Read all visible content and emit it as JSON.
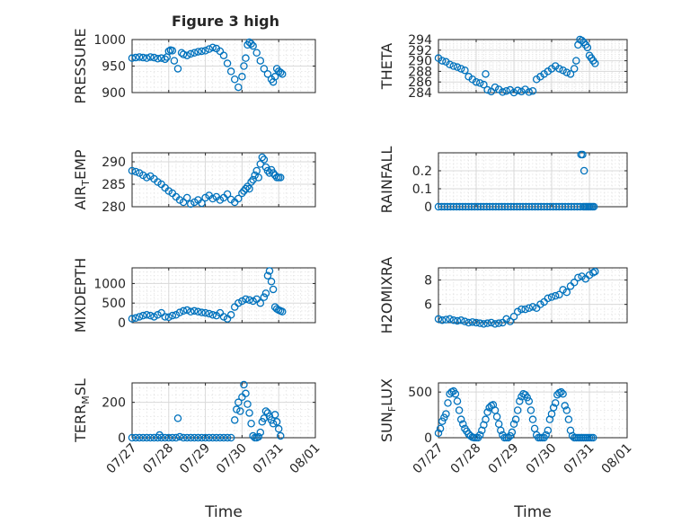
{
  "figure": {
    "title": "Figure 3 high"
  },
  "chart_data": [
    {
      "id": "pressure",
      "type": "scatter",
      "title": "Figure 3 high",
      "ylabel": "PRESSURE",
      "xlabel": "",
      "ylim": [
        900,
        1000
      ],
      "yticks": [
        900,
        950,
        1000
      ],
      "ytick_labels": [
        "900",
        "950",
        "1000"
      ],
      "xlim": [
        0,
        5
      ],
      "xticks": [
        0,
        1,
        2,
        3,
        4,
        5
      ],
      "xtick_labels": [],
      "grid": true,
      "marker_color": "#0072bd",
      "x": [
        0.0,
        0.1,
        0.2,
        0.3,
        0.4,
        0.5,
        0.6,
        0.7,
        0.8,
        0.9,
        0.95,
        1.0,
        1.05,
        1.1,
        1.15,
        1.25,
        1.35,
        1.4,
        1.5,
        1.6,
        1.7,
        1.8,
        1.9,
        2.0,
        2.1,
        2.2,
        2.3,
        2.4,
        2.5,
        2.6,
        2.7,
        2.8,
        2.9,
        3.0,
        3.05,
        3.1,
        3.15,
        3.2,
        3.25,
        3.3,
        3.4,
        3.5,
        3.6,
        3.7,
        3.8,
        3.85,
        3.9,
        3.95,
        4.0,
        4.05,
        4.1
      ],
      "y": [
        965,
        966,
        967,
        966,
        965,
        967,
        966,
        964,
        965,
        963,
        967,
        978,
        980,
        979,
        960,
        945,
        975,
        972,
        970,
        973,
        975,
        977,
        978,
        979,
        982,
        985,
        983,
        978,
        970,
        955,
        940,
        925,
        910,
        930,
        950,
        965,
        990,
        995,
        992,
        988,
        975,
        960,
        945,
        935,
        925,
        920,
        930,
        945,
        940,
        938,
        935
      ]
    },
    {
      "id": "theta",
      "type": "scatter",
      "title": "",
      "ylabel": "THETA",
      "xlabel": "",
      "ylim": [
        284,
        294
      ],
      "yticks": [
        284,
        286,
        288,
        290,
        292,
        294
      ],
      "ytick_labels": [
        "284",
        "286",
        "288",
        "290",
        "292",
        "294"
      ],
      "xlim": [
        0,
        5
      ],
      "xticks": [
        0,
        1,
        2,
        3,
        4,
        5
      ],
      "xtick_labels": [],
      "grid": true,
      "marker_color": "#0072bd",
      "x": [
        0.0,
        0.1,
        0.2,
        0.3,
        0.4,
        0.5,
        0.6,
        0.7,
        0.8,
        0.9,
        1.0,
        1.1,
        1.2,
        1.25,
        1.3,
        1.4,
        1.5,
        1.6,
        1.7,
        1.8,
        1.9,
        2.0,
        2.1,
        2.2,
        2.3,
        2.4,
        2.5,
        2.6,
        2.7,
        2.8,
        2.9,
        3.0,
        3.1,
        3.2,
        3.3,
        3.4,
        3.5,
        3.6,
        3.65,
        3.7,
        3.75,
        3.8,
        3.85,
        3.9,
        3.95,
        4.0,
        4.05,
        4.1,
        4.15
      ],
      "y": [
        290.5,
        290.0,
        289.8,
        289.3,
        289.0,
        288.8,
        288.5,
        288.2,
        287.0,
        286.5,
        286.0,
        285.8,
        285.5,
        287.5,
        284.5,
        284.2,
        285.0,
        284.6,
        284.1,
        284.3,
        284.5,
        284.0,
        284.4,
        284.2,
        284.6,
        284.1,
        284.3,
        286.5,
        287.0,
        287.5,
        288.0,
        288.5,
        289.0,
        288.5,
        288.2,
        287.8,
        287.5,
        288.5,
        290.0,
        293.0,
        294.0,
        293.8,
        293.5,
        293.0,
        292.5,
        291.0,
        290.5,
        290.0,
        289.5
      ]
    },
    {
      "id": "air_temp",
      "type": "scatter",
      "title": "",
      "ylabel": "AIR_TEMP",
      "ylabel_display": {
        "base": "AIR",
        "sub": "T",
        "rest": "EMP"
      },
      "xlabel": "",
      "ylim": [
        280,
        292
      ],
      "yticks": [
        280,
        285,
        290
      ],
      "ytick_labels": [
        "280",
        "285",
        "290"
      ],
      "xlim": [
        0,
        5
      ],
      "xticks": [
        0,
        1,
        2,
        3,
        4,
        5
      ],
      "xtick_labels": [],
      "grid": true,
      "marker_color": "#0072bd",
      "x": [
        0.0,
        0.1,
        0.2,
        0.3,
        0.4,
        0.5,
        0.6,
        0.7,
        0.8,
        0.9,
        1.0,
        1.1,
        1.2,
        1.3,
        1.4,
        1.5,
        1.6,
        1.7,
        1.8,
        1.9,
        2.0,
        2.1,
        2.2,
        2.3,
        2.4,
        2.5,
        2.6,
        2.7,
        2.8,
        2.9,
        3.0,
        3.05,
        3.1,
        3.15,
        3.2,
        3.25,
        3.3,
        3.35,
        3.4,
        3.45,
        3.5,
        3.55,
        3.6,
        3.65,
        3.7,
        3.75,
        3.8,
        3.85,
        3.9,
        3.95,
        4.0,
        4.05
      ],
      "y": [
        288.0,
        287.8,
        287.5,
        287.0,
        286.5,
        286.8,
        286.2,
        285.5,
        285.0,
        284.2,
        283.5,
        283.0,
        282.2,
        281.5,
        281.0,
        282.0,
        280.6,
        281.0,
        281.5,
        280.8,
        282.0,
        282.5,
        281.8,
        282.2,
        281.5,
        282.0,
        282.8,
        281.6,
        281.0,
        281.8,
        283.0,
        283.5,
        284.0,
        284.5,
        284.0,
        285.5,
        286.0,
        287.0,
        288.0,
        286.5,
        289.5,
        291.0,
        290.5,
        288.8,
        288.0,
        287.5,
        288.2,
        287.5,
        287.0,
        286.5,
        286.5,
        286.5
      ]
    },
    {
      "id": "rainfall",
      "type": "scatter",
      "title": "",
      "ylabel": "RAINFALL",
      "xlabel": "",
      "ylim": [
        0,
        0.3
      ],
      "yticks": [
        0,
        0.1,
        0.2
      ],
      "ytick_labels": [
        "0",
        "0.1",
        "0.2"
      ],
      "xlim": [
        0,
        5
      ],
      "xticks": [
        0,
        1,
        2,
        3,
        4,
        5
      ],
      "xtick_labels": [],
      "grid": true,
      "marker_color": "#0072bd",
      "x": [
        0.0,
        0.08,
        0.16,
        0.24,
        0.32,
        0.4,
        0.48,
        0.56,
        0.64,
        0.72,
        0.8,
        0.88,
        0.96,
        1.04,
        1.12,
        1.2,
        1.28,
        1.36,
        1.44,
        1.52,
        1.6,
        1.68,
        1.76,
        1.84,
        1.92,
        2.0,
        2.08,
        2.16,
        2.24,
        2.32,
        2.4,
        2.48,
        2.56,
        2.64,
        2.72,
        2.8,
        2.88,
        2.96,
        3.04,
        3.12,
        3.2,
        3.28,
        3.36,
        3.44,
        3.52,
        3.6,
        3.68,
        3.76,
        3.84,
        3.88,
        3.92,
        3.96,
        4.0,
        4.04,
        4.08,
        4.12,
        3.78,
        3.82,
        3.86
      ],
      "y": [
        0,
        0,
        0,
        0,
        0,
        0,
        0,
        0,
        0,
        0,
        0,
        0,
        0,
        0,
        0,
        0,
        0,
        0,
        0,
        0,
        0,
        0,
        0,
        0,
        0,
        0,
        0,
        0,
        0,
        0,
        0,
        0,
        0,
        0,
        0,
        0,
        0,
        0,
        0,
        0,
        0,
        0,
        0,
        0,
        0,
        0,
        0,
        0,
        0,
        0,
        0,
        0,
        0,
        0,
        0,
        0,
        0.29,
        0.29,
        0.2
      ]
    },
    {
      "id": "mixdepth",
      "type": "scatter",
      "title": "",
      "ylabel": "MIXDEPTH",
      "xlabel": "",
      "ylim": [
        0,
        1400
      ],
      "yticks": [
        0,
        500,
        1000
      ],
      "ytick_labels": [
        "0",
        "500",
        "1000"
      ],
      "xlim": [
        0,
        5
      ],
      "xticks": [
        0,
        1,
        2,
        3,
        4,
        5
      ],
      "xtick_labels": [],
      "grid": true,
      "marker_color": "#0072bd",
      "x": [
        0.0,
        0.1,
        0.2,
        0.3,
        0.4,
        0.5,
        0.6,
        0.7,
        0.8,
        0.9,
        1.0,
        1.1,
        1.2,
        1.3,
        1.4,
        1.5,
        1.6,
        1.7,
        1.8,
        1.9,
        2.0,
        2.1,
        2.2,
        2.3,
        2.4,
        2.5,
        2.6,
        2.7,
        2.8,
        2.9,
        3.0,
        3.1,
        3.2,
        3.3,
        3.4,
        3.5,
        3.6,
        3.65,
        3.7,
        3.75,
        3.8,
        3.85,
        3.9,
        3.95,
        4.0,
        4.05,
        4.1
      ],
      "y": [
        100,
        120,
        150,
        180,
        200,
        180,
        150,
        200,
        250,
        150,
        140,
        180,
        200,
        260,
        300,
        320,
        280,
        300,
        280,
        260,
        250,
        230,
        200,
        180,
        250,
        150,
        100,
        200,
        400,
        500,
        550,
        600,
        580,
        550,
        600,
        500,
        650,
        750,
        1200,
        1320,
        1050,
        850,
        400,
        350,
        320,
        300,
        280
      ]
    },
    {
      "id": "h2omixra",
      "type": "scatter",
      "title": "",
      "ylabel": "H2OMIXRA",
      "xlabel": "",
      "ylim": [
        4.5,
        9
      ],
      "yticks": [
        6,
        8
      ],
      "ytick_labels": [
        "6",
        "8"
      ],
      "xlim": [
        0,
        5
      ],
      "xticks": [
        0,
        1,
        2,
        3,
        4,
        5
      ],
      "xtick_labels": [],
      "grid": true,
      "marker_color": "#0072bd",
      "x": [
        0.0,
        0.1,
        0.2,
        0.3,
        0.4,
        0.5,
        0.6,
        0.7,
        0.8,
        0.9,
        1.0,
        1.1,
        1.2,
        1.3,
        1.4,
        1.5,
        1.6,
        1.7,
        1.8,
        1.9,
        2.0,
        2.1,
        2.2,
        2.3,
        2.4,
        2.5,
        2.6,
        2.7,
        2.8,
        2.9,
        3.0,
        3.1,
        3.2,
        3.3,
        3.4,
        3.5,
        3.6,
        3.7,
        3.8,
        3.9,
        4.0,
        4.1,
        4.15
      ],
      "y": [
        4.8,
        4.7,
        4.75,
        4.8,
        4.7,
        4.65,
        4.7,
        4.6,
        4.5,
        4.55,
        4.5,
        4.45,
        4.4,
        4.45,
        4.5,
        4.4,
        4.45,
        4.5,
        4.8,
        4.6,
        5.0,
        5.4,
        5.6,
        5.6,
        5.7,
        5.8,
        5.7,
        6.0,
        6.2,
        6.5,
        6.6,
        6.7,
        6.8,
        7.2,
        7.0,
        7.5,
        7.8,
        8.2,
        8.3,
        8.1,
        8.4,
        8.6,
        8.7
      ]
    },
    {
      "id": "terr_msl",
      "type": "scatter",
      "title": "",
      "ylabel": "TERR_MSL",
      "ylabel_display": {
        "base": "TERR",
        "sub": "M",
        "rest": "SL"
      },
      "xlabel": "Time",
      "ylim": [
        0,
        310
      ],
      "yticks": [
        0,
        200
      ],
      "ytick_labels": [
        "0",
        "200"
      ],
      "xlim": [
        0,
        5
      ],
      "xticks": [
        0,
        1,
        2,
        3,
        4,
        5
      ],
      "xtick_labels": [
        "07/27",
        "07/28",
        "07/29",
        "07/30",
        "07/31",
        "08/01"
      ],
      "grid": true,
      "marker_color": "#0072bd",
      "x": [
        0.0,
        0.1,
        0.2,
        0.3,
        0.4,
        0.5,
        0.6,
        0.7,
        0.75,
        0.8,
        0.9,
        1.0,
        1.1,
        1.2,
        1.25,
        1.3,
        1.4,
        1.5,
        1.6,
        1.7,
        1.8,
        1.9,
        2.0,
        2.1,
        2.2,
        2.3,
        2.4,
        2.5,
        2.6,
        2.7,
        2.8,
        2.85,
        2.9,
        2.95,
        3.0,
        3.05,
        3.1,
        3.15,
        3.2,
        3.25,
        3.3,
        3.35,
        3.4,
        3.45,
        3.5,
        3.55,
        3.6,
        3.65,
        3.7,
        3.75,
        3.8,
        3.85,
        3.9,
        3.95,
        4.0,
        4.05
      ],
      "y": [
        0,
        0,
        0,
        0,
        0,
        0,
        0,
        0,
        15,
        0,
        0,
        0,
        0,
        0,
        110,
        5,
        0,
        0,
        0,
        0,
        0,
        0,
        0,
        0,
        0,
        0,
        0,
        0,
        0,
        0,
        100,
        160,
        200,
        150,
        230,
        300,
        250,
        190,
        140,
        80,
        10,
        0,
        0,
        5,
        30,
        90,
        110,
        150,
        140,
        120,
        100,
        80,
        130,
        90,
        50,
        10
      ]
    },
    {
      "id": "sun_flux",
      "type": "scatter",
      "title": "",
      "ylabel": "SUN_FLUX",
      "ylabel_display": {
        "base": "SUN",
        "sub": "F",
        "rest": "LUX"
      },
      "xlabel": "Time",
      "ylim": [
        0,
        600
      ],
      "yticks": [
        0,
        500
      ],
      "ytick_labels": [
        "0",
        "500"
      ],
      "xlim": [
        0,
        5
      ],
      "xticks": [
        0,
        1,
        2,
        3,
        4,
        5
      ],
      "xtick_labels": [
        "07/27",
        "07/28",
        "07/29",
        "07/30",
        "07/31",
        "08/01"
      ],
      "grid": true,
      "marker_color": "#0072bd",
      "x": [
        0.0,
        0.05,
        0.1,
        0.15,
        0.2,
        0.25,
        0.3,
        0.35,
        0.4,
        0.45,
        0.5,
        0.55,
        0.6,
        0.65,
        0.7,
        0.75,
        0.8,
        0.85,
        0.9,
        0.95,
        1.0,
        1.05,
        1.1,
        1.15,
        1.2,
        1.25,
        1.3,
        1.35,
        1.4,
        1.45,
        1.5,
        1.55,
        1.6,
        1.65,
        1.7,
        1.75,
        1.8,
        1.85,
        1.9,
        1.95,
        2.0,
        2.05,
        2.1,
        2.15,
        2.2,
        2.25,
        2.3,
        2.35,
        2.4,
        2.45,
        2.5,
        2.55,
        2.6,
        2.65,
        2.7,
        2.75,
        2.8,
        2.85,
        2.9,
        2.95,
        3.0,
        3.05,
        3.1,
        3.15,
        3.2,
        3.25,
        3.3,
        3.35,
        3.4,
        3.45,
        3.5,
        3.55,
        3.6,
        3.65,
        3.7,
        3.75,
        3.8,
        3.85,
        3.9,
        3.95,
        4.0,
        4.05,
        4.1
      ],
      "y": [
        50,
        100,
        180,
        220,
        260,
        380,
        480,
        500,
        510,
        480,
        400,
        300,
        200,
        150,
        100,
        70,
        40,
        20,
        5,
        0,
        0,
        0,
        30,
        80,
        140,
        200,
        280,
        330,
        350,
        360,
        300,
        230,
        150,
        80,
        30,
        0,
        0,
        0,
        20,
        60,
        150,
        200,
        300,
        400,
        450,
        480,
        470,
        440,
        400,
        300,
        200,
        100,
        30,
        0,
        0,
        0,
        0,
        30,
        80,
        200,
        260,
        330,
        380,
        470,
        490,
        500,
        480,
        350,
        300,
        200,
        80,
        20,
        0,
        0,
        0,
        0,
        0,
        0,
        0,
        0,
        0,
        0,
        0
      ]
    }
  ]
}
